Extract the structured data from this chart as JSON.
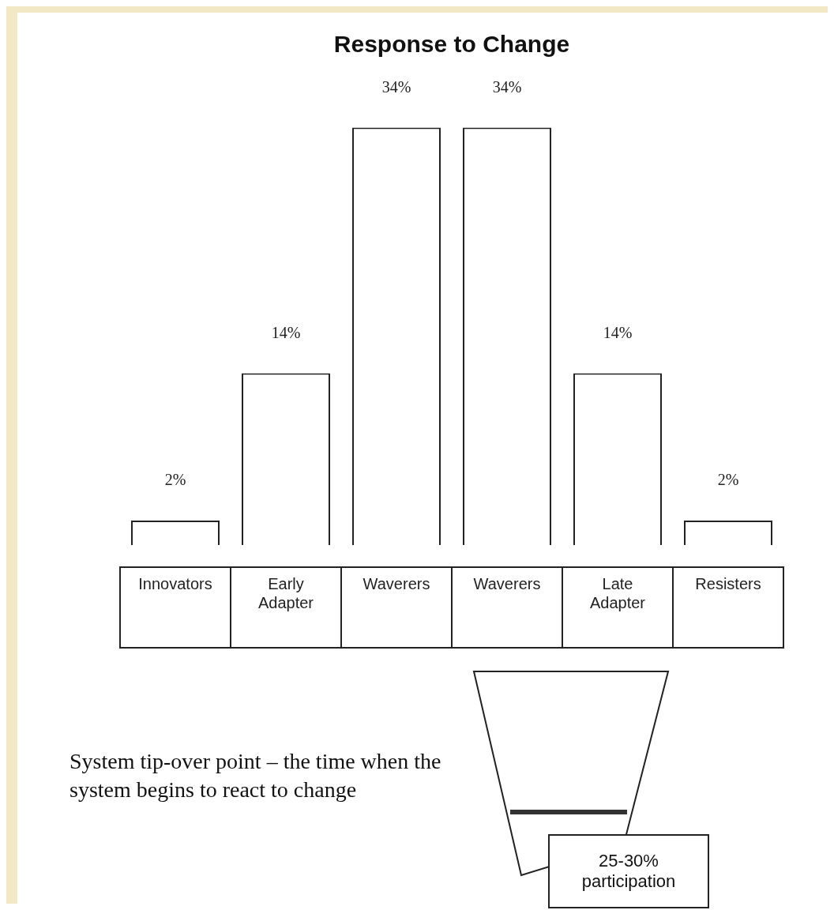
{
  "chart_data": {
    "type": "bar",
    "title": "Response to Change",
    "categories": [
      "Innovators",
      "Early Adapter",
      "Waverers",
      "Waverers",
      "Late Adapter",
      "Resisters"
    ],
    "values": [
      2,
      14,
      34,
      34,
      14,
      2
    ],
    "value_labels": [
      "2%",
      "14%",
      "34%",
      "34%",
      "14%",
      "2%"
    ],
    "color": "#ffffff",
    "grid": false,
    "legend": false,
    "annotations": [
      "System tip-over point – the time when the system begins to react to change",
      "25-30% participation"
    ]
  }
}
